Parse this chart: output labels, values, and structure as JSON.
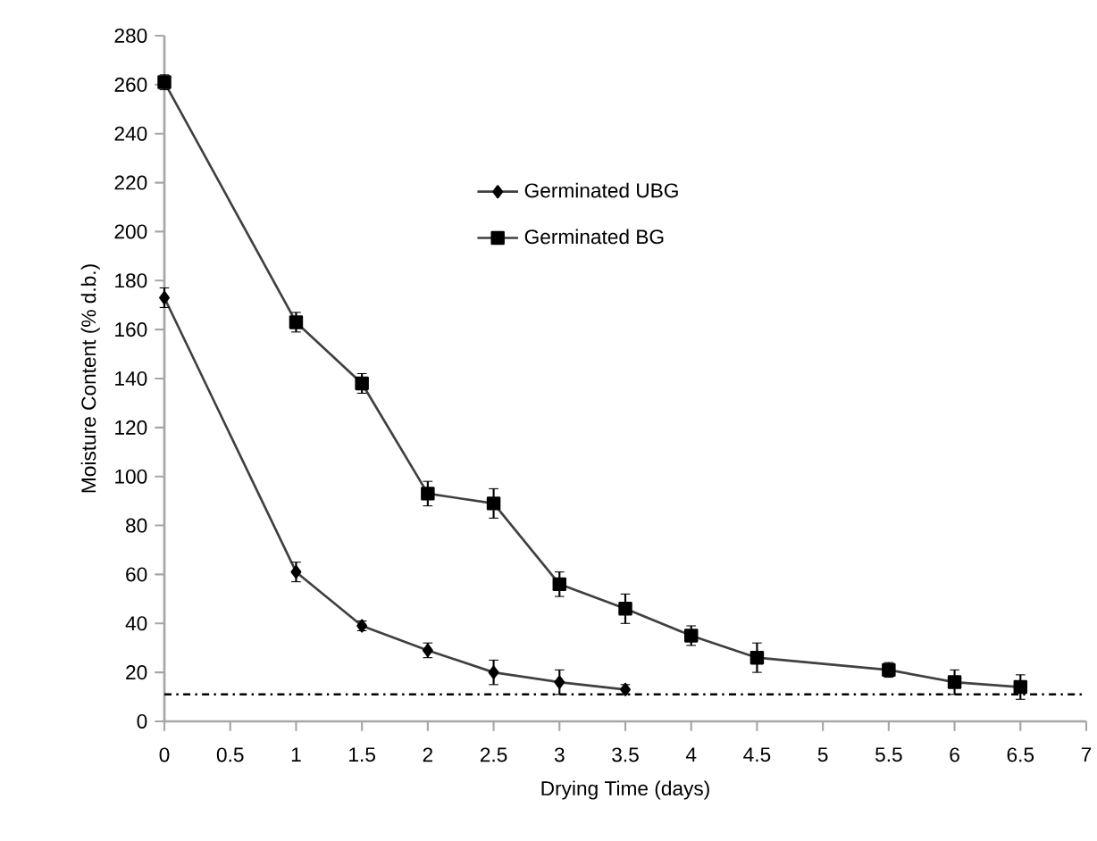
{
  "chart_data": {
    "type": "line",
    "xlabel": "Drying Time (days)",
    "ylabel": "Moisture Content (% d.b.)",
    "xlim": [
      0,
      7
    ],
    "xticks": [
      0,
      0.5,
      1,
      1.5,
      2,
      2.5,
      3,
      3.5,
      4,
      4.5,
      5,
      5.5,
      6,
      6.5,
      7
    ],
    "ylim": [
      0,
      280
    ],
    "yticks": [
      0,
      20,
      40,
      60,
      80,
      100,
      120,
      140,
      160,
      180,
      200,
      220,
      240,
      260,
      280
    ],
    "grid": false,
    "legend": "top",
    "line_style": "solid",
    "series": [
      {
        "name": "Germinated UBG",
        "color": "#000000",
        "marker": "diamond",
        "x": [
          0,
          1,
          1.5,
          2,
          2.5,
          3,
          3.5
        ],
        "values": [
          173,
          61,
          39,
          29,
          20,
          16,
          13
        ],
        "errors": [
          4,
          4,
          2,
          3,
          5,
          5,
          2
        ]
      },
      {
        "name": "Germinated BG",
        "color": "#000000",
        "marker": "square",
        "x": [
          0,
          1,
          1.5,
          2,
          2.5,
          3,
          3.5,
          4,
          4.5,
          5.5,
          6,
          6.5
        ],
        "values": [
          261,
          163,
          138,
          93,
          89,
          56,
          46,
          35,
          26,
          21,
          16,
          14
        ],
        "errors": [
          3,
          4,
          4,
          5,
          6,
          5,
          6,
          4,
          6,
          3,
          5,
          5
        ]
      }
    ],
    "ref_lines": [
      {
        "axis": "y",
        "value": 11,
        "color": "#000000",
        "line_style": "dashdot"
      }
    ]
  }
}
